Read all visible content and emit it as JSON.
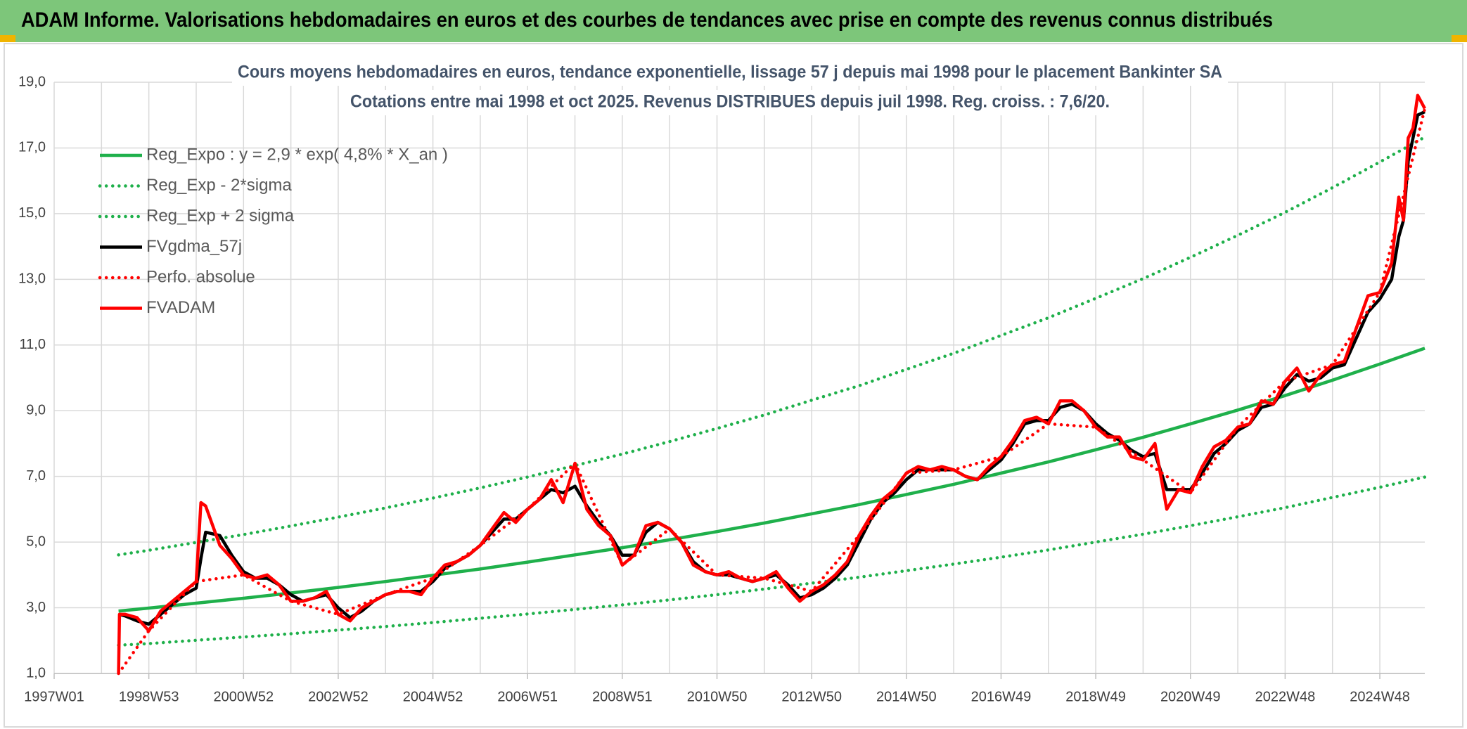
{
  "header": {
    "title": "ADAM Informe. Valorisations hebdomadaires en euros et des courbes de tendances avec prise en compte des revenus connus distribués"
  },
  "chart_data": {
    "type": "line",
    "title": "Cours moyens hebdomadaires en euros, tendance exponentielle, lissage 57 j depuis mai 1998 pour le placement Bankinter SA",
    "subtitle": "Cotations entre mai 1998 et oct 2025. Revenus DISTRIBUES depuis juil 1998. Reg. croiss. : 7,6/20.",
    "legend": "upper left",
    "grid": true,
    "xlim": [
      1997,
      2025.95
    ],
    "xticks": [
      {
        "value": 1997,
        "label": "1997W01"
      },
      {
        "value": 1999,
        "label": "1998W53"
      },
      {
        "value": 2001,
        "label": "2000W52"
      },
      {
        "value": 2003,
        "label": "2002W52"
      },
      {
        "value": 2005,
        "label": "2004W52"
      },
      {
        "value": 2007,
        "label": "2006W51"
      },
      {
        "value": 2009,
        "label": "2008W51"
      },
      {
        "value": 2011,
        "label": "2010W50"
      },
      {
        "value": 2013,
        "label": "2012W50"
      },
      {
        "value": 2015,
        "label": "2014W50"
      },
      {
        "value": 2017,
        "label": "2016W49"
      },
      {
        "value": 2019,
        "label": "2018W49"
      },
      {
        "value": 2021,
        "label": "2020W49"
      },
      {
        "value": 2023,
        "label": "2022W48"
      },
      {
        "value": 2025,
        "label": "2024W48"
      }
    ],
    "ylim": [
      1,
      19
    ],
    "yticks": [
      {
        "value": 1,
        "label": "1,0"
      },
      {
        "value": 3,
        "label": "3,0"
      },
      {
        "value": 5,
        "label": "5,0"
      },
      {
        "value": 7,
        "label": "7,0"
      },
      {
        "value": 9,
        "label": "9,0"
      },
      {
        "value": 11,
        "label": "11,0"
      },
      {
        "value": 13,
        "label": "13,0"
      },
      {
        "value": 15,
        "label": "15,0"
      },
      {
        "value": 17,
        "label": "17,0"
      },
      {
        "value": 19,
        "label": "19,0"
      }
    ],
    "x": [
      1998.36,
      1998.38,
      1998.5,
      1998.75,
      1999,
      1999.25,
      1999.5,
      1999.75,
      2000,
      2000.1,
      2000.2,
      2000.5,
      2000.75,
      2001,
      2001.25,
      2001.5,
      2001.75,
      2002,
      2002.25,
      2002.5,
      2002.75,
      2003,
      2003.25,
      2003.5,
      2003.75,
      2004,
      2004.25,
      2004.5,
      2004.75,
      2005,
      2005.25,
      2005.5,
      2005.75,
      2006,
      2006.25,
      2006.5,
      2006.75,
      2007,
      2007.25,
      2007.5,
      2007.75,
      2008,
      2008.25,
      2008.5,
      2008.75,
      2009,
      2009.25,
      2009.5,
      2009.75,
      2010,
      2010.25,
      2010.5,
      2010.75,
      2011,
      2011.25,
      2011.5,
      2011.75,
      2012,
      2012.25,
      2012.5,
      2012.75,
      2013,
      2013.25,
      2013.5,
      2013.75,
      2014,
      2014.25,
      2014.5,
      2014.75,
      2015,
      2015.25,
      2015.5,
      2015.75,
      2016,
      2016.25,
      2016.5,
      2016.75,
      2017,
      2017.25,
      2017.5,
      2017.75,
      2018,
      2018.25,
      2018.5,
      2018.75,
      2019,
      2019.25,
      2019.5,
      2019.75,
      2020,
      2020.25,
      2020.5,
      2020.75,
      2021,
      2021.25,
      2021.5,
      2021.75,
      2022,
      2022.25,
      2022.5,
      2022.75,
      2023,
      2023.25,
      2023.5,
      2023.75,
      2024,
      2024.25,
      2024.5,
      2024.75,
      2025,
      2025.25,
      2025.4,
      2025.5,
      2025.6,
      2025.7,
      2025.8,
      2025.95
    ],
    "series": [
      {
        "name": "Reg_Expo : y = 2,9 * exp( 4,8% *  X_an )",
        "color": "#1fb04b",
        "style": "solid",
        "x": [
          1998.36,
          1999,
          2000,
          2001,
          2002,
          2003,
          2004,
          2005,
          2006,
          2007,
          2008,
          2009,
          2010,
          2011,
          2012,
          2013,
          2014,
          2015,
          2016,
          2017,
          2018,
          2019,
          2020,
          2021,
          2022,
          2023,
          2024,
          2025,
          2025.95
        ],
        "values": [
          2.9,
          2.99,
          3.14,
          3.29,
          3.45,
          3.62,
          3.8,
          3.99,
          4.18,
          4.39,
          4.61,
          4.83,
          5.07,
          5.32,
          5.58,
          5.86,
          6.14,
          6.45,
          6.76,
          7.1,
          7.44,
          7.81,
          8.19,
          8.6,
          9.02,
          9.46,
          9.93,
          10.42,
          10.9
        ]
      },
      {
        "name": "Reg_Exp - 2*sigma",
        "color": "#1fb04b",
        "style": "dotted",
        "x": [
          1998.36,
          1999,
          2000,
          2001,
          2002,
          2003,
          2004,
          2005,
          2006,
          2007,
          2008,
          2009,
          2010,
          2011,
          2012,
          2013,
          2014,
          2015,
          2016,
          2017,
          2018,
          2019,
          2020,
          2021,
          2022,
          2023,
          2024,
          2025,
          2025.95
        ],
        "values": [
          1.86,
          1.91,
          2.01,
          2.11,
          2.21,
          2.32,
          2.43,
          2.55,
          2.68,
          2.81,
          2.95,
          3.09,
          3.24,
          3.4,
          3.57,
          3.75,
          3.93,
          4.13,
          4.33,
          4.54,
          4.76,
          5.0,
          5.24,
          5.5,
          5.77,
          6.05,
          6.36,
          6.67,
          6.98
        ]
      },
      {
        "name": "Reg_Exp + 2 sigma",
        "color": "#1fb04b",
        "style": "dotted",
        "x": [
          1998.36,
          1999,
          2000,
          2001,
          2002,
          2003,
          2004,
          2005,
          2006,
          2007,
          2008,
          2009,
          2010,
          2011,
          2012,
          2013,
          2014,
          2015,
          2016,
          2017,
          2018,
          2019,
          2020,
          2021,
          2022,
          2023,
          2024,
          2025,
          2025.95
        ],
        "values": [
          4.61,
          4.75,
          4.99,
          5.23,
          5.49,
          5.76,
          6.04,
          6.34,
          6.65,
          6.98,
          7.33,
          7.68,
          8.06,
          8.46,
          8.87,
          9.32,
          9.76,
          10.26,
          10.75,
          11.29,
          11.83,
          12.42,
          13.02,
          13.67,
          14.34,
          15.04,
          15.79,
          16.57,
          17.33
        ]
      },
      {
        "name": "FVgdma_57j",
        "color": "#000000",
        "style": "solid",
        "values": [
          null,
          2.8,
          2.75,
          2.6,
          2.5,
          2.8,
          3.1,
          3.4,
          3.6,
          4.5,
          5.3,
          5.2,
          4.6,
          4.1,
          3.9,
          3.9,
          3.7,
          3.4,
          3.2,
          3.3,
          3.4,
          3.0,
          2.7,
          2.9,
          3.2,
          3.4,
          3.5,
          3.5,
          3.5,
          3.8,
          4.2,
          4.4,
          4.6,
          4.9,
          5.3,
          5.7,
          5.7,
          6.0,
          6.3,
          6.6,
          6.5,
          6.7,
          6.1,
          5.6,
          5.2,
          4.6,
          4.6,
          5.3,
          5.6,
          5.4,
          5.0,
          4.4,
          4.1,
          4.0,
          4.0,
          3.9,
          3.8,
          3.9,
          4.0,
          3.7,
          3.3,
          3.4,
          3.6,
          3.9,
          4.3,
          5.0,
          5.7,
          6.2,
          6.5,
          6.9,
          7.2,
          7.2,
          7.2,
          7.2,
          7.0,
          6.9,
          7.2,
          7.5,
          8.0,
          8.6,
          8.7,
          8.7,
          9.1,
          9.2,
          9.0,
          8.6,
          8.3,
          8.1,
          7.8,
          7.6,
          7.7,
          6.6,
          6.6,
          6.6,
          7.1,
          7.7,
          8.0,
          8.4,
          8.6,
          9.1,
          9.2,
          9.7,
          10.1,
          9.9,
          10.0,
          10.3,
          10.4,
          11.2,
          12.0,
          12.4,
          13.0,
          14.3,
          14.8,
          16.6,
          17.3,
          18.0,
          18.1
        ]
      },
      {
        "name": "Perfo. absolue",
        "color": "#ff0000",
        "style": "dotted",
        "x": [
          1998.36,
          1999,
          2000,
          2001,
          2002,
          2003,
          2004,
          2005,
          2006,
          2007,
          2008,
          2009,
          2010,
          2011,
          2012,
          2013,
          2014,
          2015,
          2016,
          2017,
          2018,
          2019,
          2020,
          2021,
          2022,
          2023,
          2024,
          2025,
          2025.95
        ],
        "values": [
          1.0,
          2.3,
          3.8,
          4.0,
          3.2,
          2.8,
          3.4,
          3.9,
          4.9,
          6.0,
          7.4,
          4.3,
          5.4,
          4.0,
          3.9,
          3.5,
          5.2,
          7.1,
          7.2,
          7.6,
          8.6,
          8.5,
          7.5,
          6.5,
          8.5,
          9.9,
          10.4,
          12.6,
          18.2
        ]
      },
      {
        "name": "FVADAM",
        "color": "#ff0000",
        "style": "solid",
        "values": [
          1.0,
          2.8,
          2.8,
          2.7,
          2.3,
          2.9,
          3.2,
          3.5,
          3.8,
          6.2,
          6.1,
          4.9,
          4.5,
          4.0,
          3.9,
          4.0,
          3.7,
          3.2,
          3.2,
          3.3,
          3.5,
          2.8,
          2.6,
          3.0,
          3.2,
          3.4,
          3.5,
          3.5,
          3.4,
          3.9,
          4.3,
          4.4,
          4.6,
          4.9,
          5.4,
          5.9,
          5.6,
          6.0,
          6.3,
          6.9,
          6.2,
          7.4,
          6.0,
          5.5,
          5.2,
          4.3,
          4.6,
          5.5,
          5.6,
          5.4,
          5.0,
          4.3,
          4.1,
          4.0,
          4.1,
          3.9,
          3.8,
          3.9,
          4.1,
          3.6,
          3.2,
          3.5,
          3.7,
          4.0,
          4.4,
          5.2,
          5.8,
          6.3,
          6.6,
          7.1,
          7.3,
          7.2,
          7.3,
          7.2,
          7.0,
          6.9,
          7.3,
          7.6,
          8.1,
          8.7,
          8.8,
          8.6,
          9.3,
          9.3,
          9.0,
          8.5,
          8.2,
          8.2,
          7.6,
          7.5,
          8.0,
          6.0,
          6.6,
          6.5,
          7.3,
          7.9,
          8.1,
          8.5,
          8.6,
          9.3,
          9.2,
          9.9,
          10.3,
          9.6,
          10.1,
          10.4,
          10.5,
          11.5,
          12.5,
          12.6,
          13.5,
          15.5,
          14.8,
          17.3,
          17.6,
          18.6,
          18.2
        ]
      }
    ]
  }
}
